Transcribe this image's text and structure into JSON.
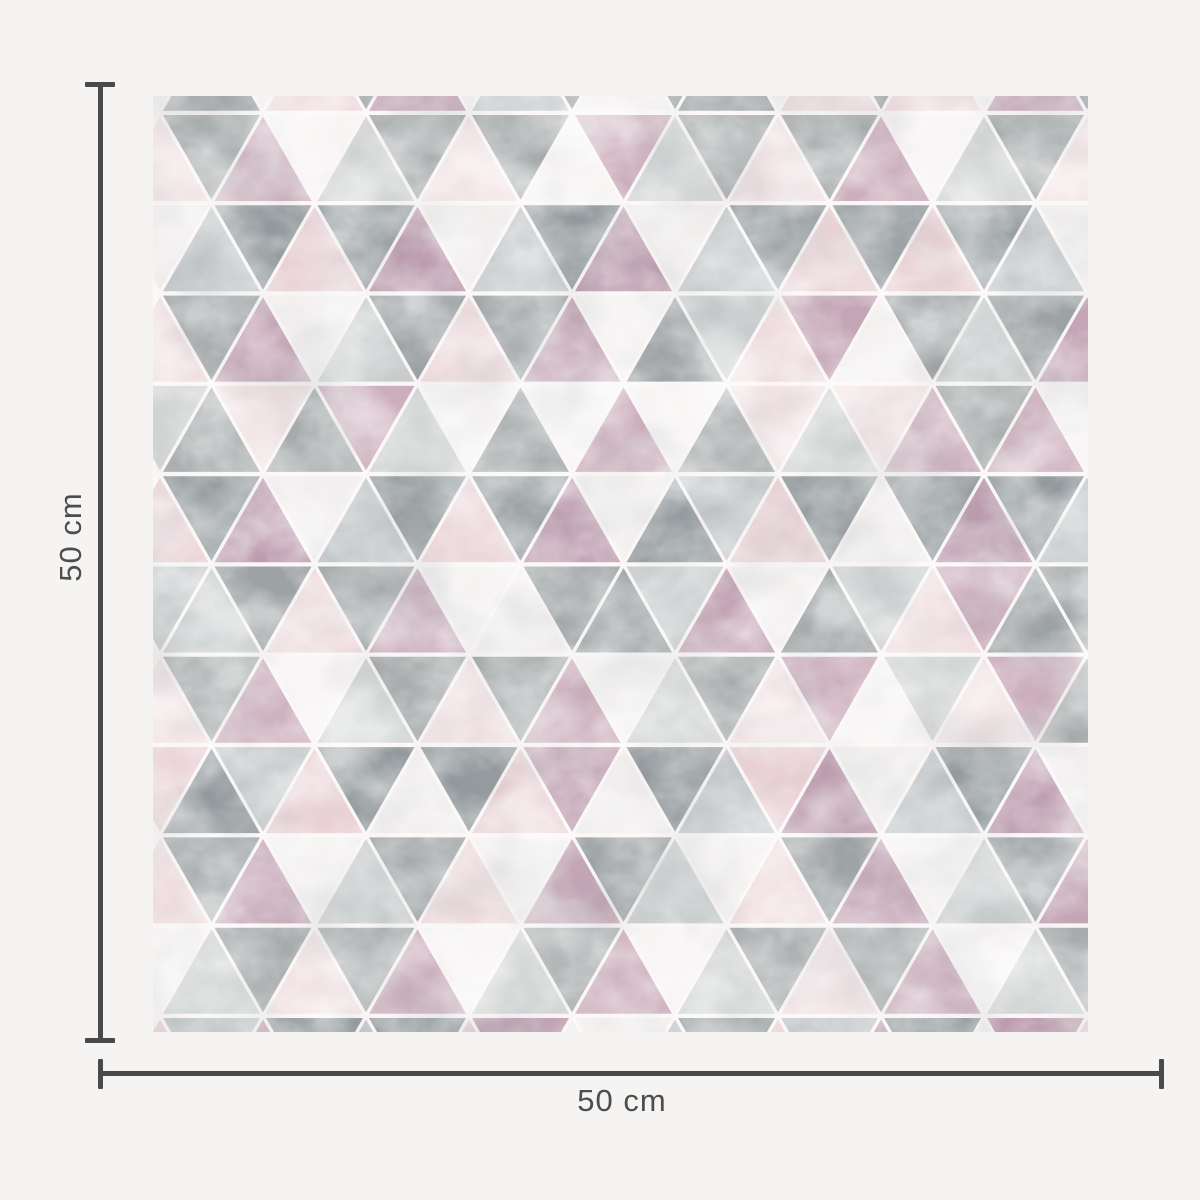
{
  "page": {
    "background_color": "#f5f4f3",
    "description": "Product dimension diagram of a square wall covering swatch with geometric triangle pattern"
  },
  "product_swatch": {
    "pattern_name": "pink-grey-marble-triangle-pattern",
    "gap_color": "#faf6f5",
    "palette": {
      "M": [
        "#c4a5b5",
        "#bd9cae",
        "#cbadbb"
      ],
      "G": [
        "#9da2a4",
        "#939a9d",
        "#a7abac"
      ],
      "S": [
        "#c8cccd",
        "#c0c5c7",
        "#d1d4d4"
      ],
      "P": [
        "#eedbde",
        "#e8d0d4",
        "#f1e2e4"
      ],
      "W": [
        "#f3f1f0",
        "#efedec",
        "#f6f4f3"
      ]
    },
    "palette_legend": {
      "M": "dusty mauve pink",
      "G": "grey marble",
      "S": "light silver-grey marble",
      "P": "pale blush pink marble",
      "W": "off-white"
    },
    "grid_rows": [
      "WGWPGMWSGWGGWPGPWMG",
      "PGMWSGPGWMSGPGMWSGP",
      "WSGPGMWSGMWSGPGPGSW",
      "PGMWSGPGMWGSPMWGSGM",
      "SGPGMSWGWMWGPSPMGMW",
      "PGMWSGPGMWGSPGWGMGS",
      "SSGPGMWWGGSMWGSPMGG",
      "PGMWSGPGMWSGPMWSPMG",
      "PGSPGWGPMWGSPMWSGMW",
      "PGMWSGPWMGSWPGMWSGM",
      "WSGPGMWSGMWSGPGMWSG",
      "PSMGSGPMWWSGPSMGWMP"
    ]
  },
  "dimensions": {
    "height_label": "50 cm",
    "width_label": "50 cm",
    "line_color": "#4a4a4a",
    "text_color": "#4d4d4d"
  }
}
